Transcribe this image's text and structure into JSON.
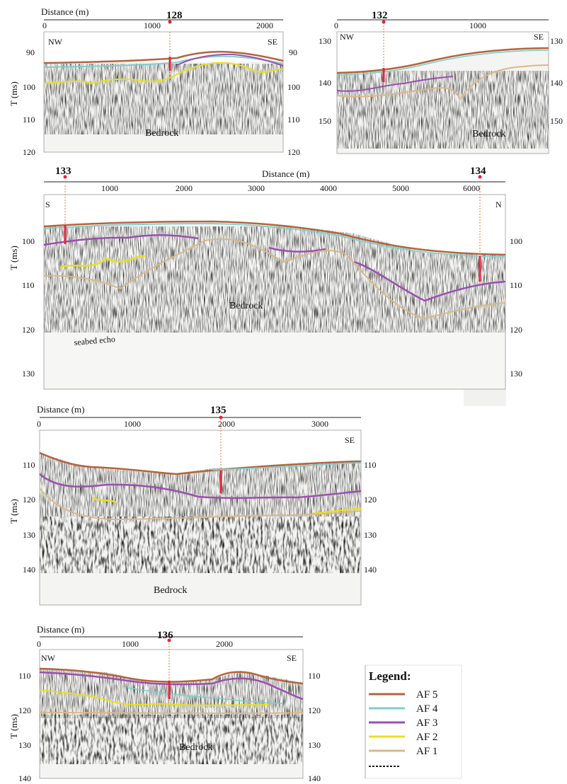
{
  "panels": [
    {
      "distance_label": "Distance (m)",
      "time_label": "T (ms)",
      "dir_left": "NW",
      "dir_right": "SE",
      "x_ticks": [
        "0",
        "1000",
        "2000"
      ],
      "y_ticks": [
        "90",
        "100",
        "110",
        "120"
      ],
      "sites": [
        "128"
      ],
      "label": "Bedrock"
    },
    {
      "dir_left": "NW",
      "dir_right": "SE",
      "x_ticks": [
        "0",
        "1000"
      ],
      "y_ticks": [
        "130",
        "140",
        "150"
      ],
      "sites": [
        "132"
      ],
      "label": "Bedrock"
    },
    {
      "distance_label": "Distance (m)",
      "time_label": "T (ms)",
      "dir_left": "S",
      "dir_right": "N",
      "x_ticks": [
        "1000",
        "2000",
        "3000",
        "4000",
        "5000",
        "6000"
      ],
      "y_ticks": [
        "100",
        "110",
        "120",
        "130"
      ],
      "sites": [
        "133",
        "134"
      ],
      "label": "Bedrock",
      "echo_label": "seabed echo"
    },
    {
      "distance_label": "Distance (m)",
      "time_label": "T (ms)",
      "dir_right": "SE",
      "x_ticks": [
        "0",
        "1000",
        "2000",
        "3000"
      ],
      "y_ticks": [
        "110",
        "120",
        "130",
        "140"
      ],
      "sites": [
        "135"
      ],
      "label": "Bedrock"
    },
    {
      "distance_label": "Distance (m)",
      "time_label": "T (ms)",
      "dir_left": "NW",
      "dir_right": "SE",
      "x_ticks": [
        "0",
        "1000",
        "2000"
      ],
      "y_ticks": [
        "110",
        "120",
        "130",
        "140"
      ],
      "sites": [
        "136"
      ],
      "label": "Bedrock"
    }
  ],
  "legend": {
    "title": "Legend:",
    "items": [
      {
        "label": "AF 5",
        "color": "#b5643a"
      },
      {
        "label": "AF 4",
        "color": "#7fcfcf"
      },
      {
        "label": "AF 3",
        "color": "#9b4fb0"
      },
      {
        "label": "AF 2",
        "color": "#e8e020"
      },
      {
        "label": "AF 1",
        "color": "#d8b98a"
      }
    ]
  },
  "colors": {
    "af5": "#b5643a",
    "af4": "#7fcfcf",
    "af3": "#9b4fb0",
    "af2": "#e8e020",
    "af1": "#d8b98a",
    "site_marker": "#e0273a",
    "site_line": "#e07a3a"
  }
}
